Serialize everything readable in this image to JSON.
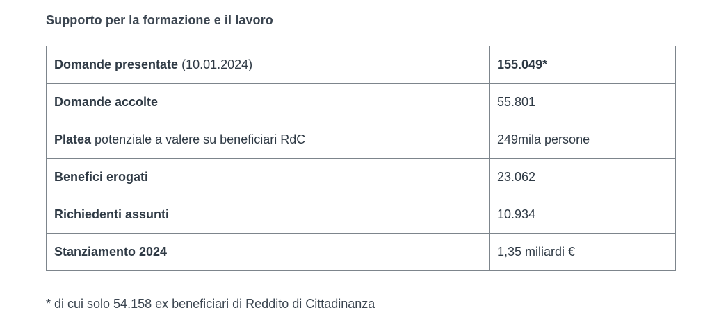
{
  "title": "Supporto per la formazione e il lavoro",
  "rows": [
    {
      "label_bold": "Domande presentate",
      "label_rest": " (10.01.2024)",
      "value": "155.049*",
      "value_bold": true
    },
    {
      "label_bold": "Domande accolte",
      "label_rest": "",
      "value": "55.801",
      "value_bold": false
    },
    {
      "label_bold": "Platea",
      "label_rest": " potenziale a valere su beneficiari RdC",
      "value": "249mila persone",
      "value_bold": false
    },
    {
      "label_bold": "Benefici erogati",
      "label_rest": "",
      "value": "23.062",
      "value_bold": false
    },
    {
      "label_bold": "Richiedenti assunti",
      "label_rest": "",
      "value": "10.934",
      "value_bold": false
    },
    {
      "label_bold": "Stanziamento 2024",
      "label_rest": "",
      "value": "1,35 miliardi €",
      "value_bold": false
    }
  ],
  "footnote": "* di cui solo 54.158 ex beneficiari di Reddito di Cittadinanza"
}
